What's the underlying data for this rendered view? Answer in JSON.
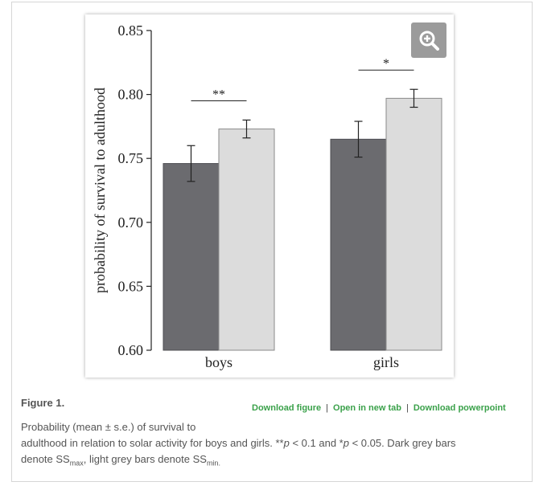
{
  "figure": {
    "label": "Figure 1.",
    "links": {
      "download_figure": "Download figure",
      "separator": "|",
      "open_new_tab": "Open in new tab",
      "download_powerpoint": "Download powerpoint"
    },
    "caption": {
      "line1": "Probability (mean ± s.e.) of survival to",
      "line2a": "adulthood in relation to solar activity for boys and girls. **",
      "p1": "p",
      "line2b": " < 0.1 and *",
      "p2": "p",
      "line2c": " < 0.05. Dark grey bars",
      "line3a": "denote SS",
      "sub_max": "max",
      "line3b": ", light grey bars denote SS",
      "sub_min": "min."
    }
  },
  "zoom_icon": "zoom-in-icon",
  "colors": {
    "dark_bar": "#6b6b6f",
    "light_bar": "#dcdcdc",
    "link": "#3aa14a",
    "zoom_bg": "#9b9b9b"
  },
  "chart_data": {
    "type": "bar",
    "categories": [
      "boys",
      "girls"
    ],
    "series": [
      {
        "values": [
          0.746,
          0.765
        ],
        "errors": [
          0.014,
          0.014
        ],
        "color": "#6b6b6f"
      },
      {
        "values": [
          0.773,
          0.797
        ],
        "errors": [
          0.007,
          0.007
        ],
        "color": "#dcdcdc"
      }
    ],
    "significance": [
      "**",
      "*"
    ],
    "ylabel": "probability of survival to adulthood",
    "ylim": [
      0.6,
      0.85
    ],
    "yticks": [
      "0.60",
      "0.65",
      "0.70",
      "0.75",
      "0.80",
      "0.85"
    ],
    "grid": false
  }
}
